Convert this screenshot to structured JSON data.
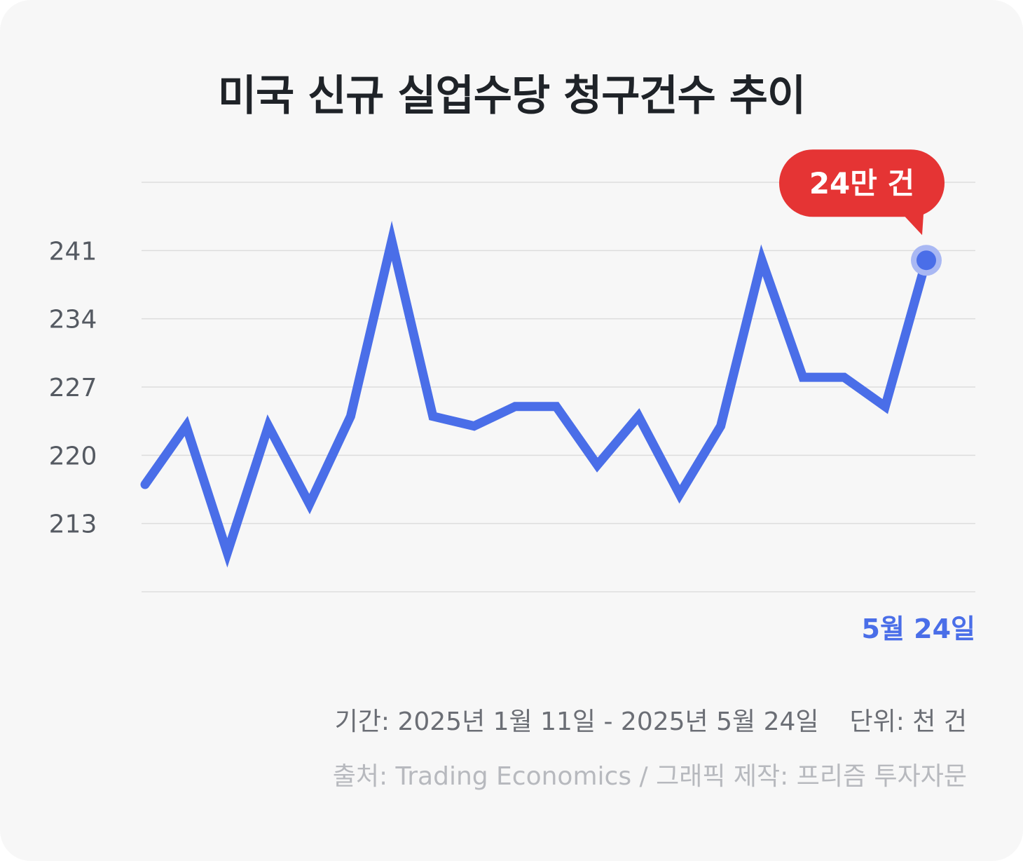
{
  "title": "미국 신규 실업수당 청구건수 추이",
  "footer": {
    "period": "기간: 2025년 1월 11일 - 2025년 5월 24일",
    "unit": "단위: 천 건",
    "source": "출처: Trading Economics / 그래픽 제작: 프리즘 투자자문"
  },
  "colors": {
    "line": "#4a6ee8",
    "callout": "#e53434",
    "grid": "#dddddd",
    "tick_text": "#555a62",
    "end_label": "#4a6ee8"
  },
  "chart_data": {
    "type": "line",
    "title": "미국 신규 실업수당 청구건수 추이",
    "xlabel": "",
    "ylabel": "",
    "unit": "천 건",
    "x_start": "2025년 1월 11일",
    "x_end": "2025년 5월 24일",
    "end_date_label": "5월 24일",
    "ylim": [
      206,
      248
    ],
    "y_ticks": [
      241,
      234,
      227,
      220,
      213
    ],
    "grid": true,
    "series": [
      {
        "values": [
          217,
          223,
          210,
          223,
          215,
          224,
          242,
          224,
          223,
          225,
          225,
          219,
          224,
          216,
          223,
          240,
          228,
          228,
          225,
          240
        ]
      }
    ],
    "callout": "24만 건"
  }
}
